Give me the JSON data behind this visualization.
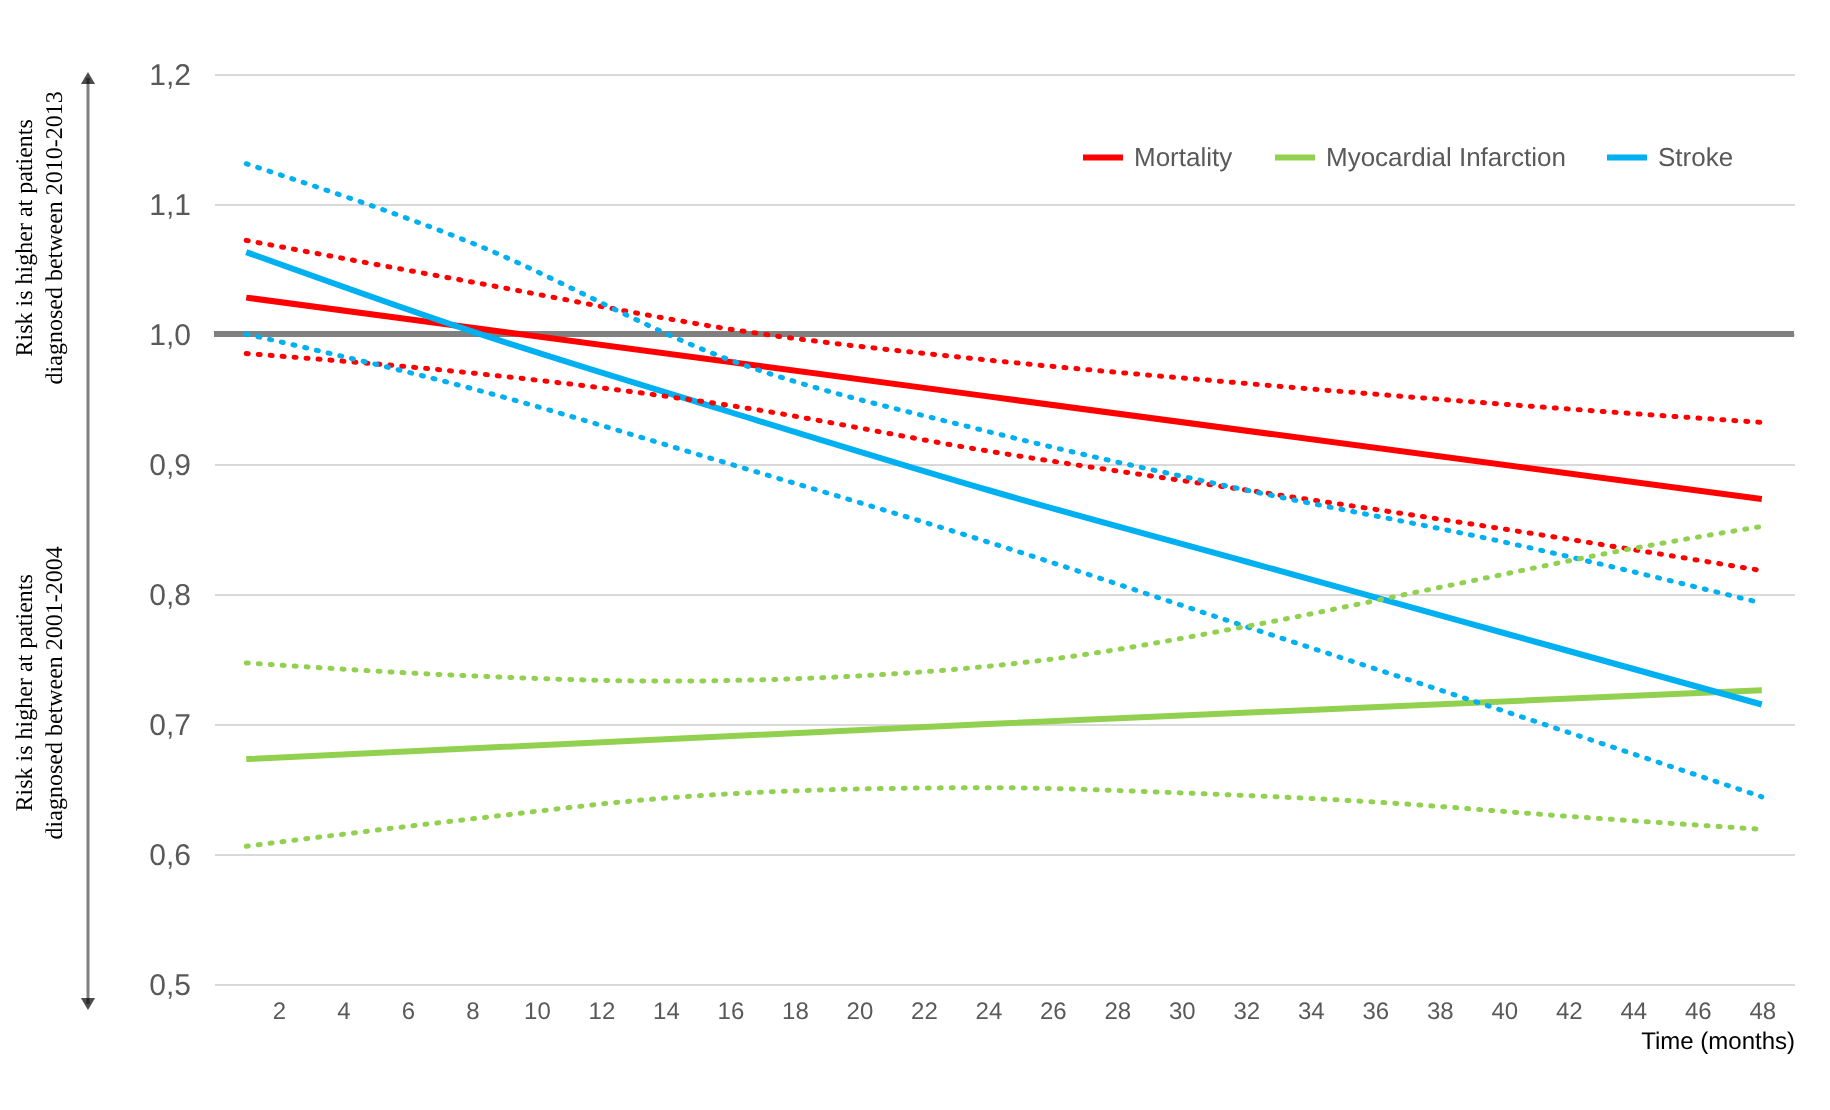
{
  "chart_data": {
    "type": "line",
    "xlabel": "Time (months)",
    "xlim": [
      0,
      49
    ],
    "xticks": [
      2,
      4,
      6,
      8,
      10,
      12,
      14,
      16,
      18,
      20,
      22,
      24,
      26,
      28,
      30,
      32,
      34,
      36,
      38,
      40,
      42,
      44,
      46,
      48
    ],
    "ylim": [
      0.5,
      1.2
    ],
    "yticks": [
      {
        "value": 0.5,
        "label": "0,5"
      },
      {
        "value": 0.6,
        "label": "0,6"
      },
      {
        "value": 0.7,
        "label": "0,7"
      },
      {
        "value": 0.8,
        "label": "0,8"
      },
      {
        "value": 0.9,
        "label": "0,9"
      },
      {
        "value": 1.0,
        "label": "1,0"
      },
      {
        "value": 1.1,
        "label": "1,1"
      },
      {
        "value": 1.2,
        "label": "1,2"
      }
    ],
    "grid": "y",
    "legend": "top right",
    "marker": "none",
    "ref_lines": [
      {
        "axis": "y",
        "value": 1.0,
        "color": "#808080"
      }
    ],
    "annotations": [
      "Risk is higher at patients\ndiagnosed between 2010-2013",
      "Risk is higher at patients\ndiagnosed between 2001-2004"
    ],
    "series": [
      {
        "name": "Mortality",
        "color": "#ff0000",
        "line_style": "solid",
        "x": [
          1,
          24,
          48
        ],
        "values": [
          1.028,
          0.952,
          0.873
        ]
      },
      {
        "name": "Myocardial Infarction",
        "color": "#92d050",
        "line_style": "solid",
        "x": [
          1,
          24,
          48
        ],
        "values": [
          0.673,
          0.7,
          0.726
        ]
      },
      {
        "name": "Stroke",
        "color": "#00b0f0",
        "line_style": "solid",
        "x": [
          1,
          8,
          16,
          24,
          32,
          40,
          48
        ],
        "values": [
          1.063,
          1.002,
          0.94,
          0.88,
          0.825,
          0.77,
          0.715
        ]
      },
      {
        "color": "#ff0000",
        "line_style": "dotted",
        "x": [
          1,
          8,
          17,
          24,
          32,
          40,
          48
        ],
        "values": [
          1.072,
          1.04,
          1.0,
          0.98,
          0.962,
          0.946,
          0.932
        ]
      },
      {
        "color": "#ff0000",
        "line_style": "dotted",
        "x": [
          1,
          8,
          16,
          24,
          32,
          40,
          48
        ],
        "values": [
          0.985,
          0.97,
          0.945,
          0.91,
          0.88,
          0.85,
          0.818
        ]
      },
      {
        "color": "#00b0f0",
        "line_style": "dotted",
        "x": [
          1,
          8,
          16,
          24,
          32,
          40,
          48
        ],
        "values": [
          1.131,
          1.07,
          0.98,
          0.925,
          0.88,
          0.84,
          0.793
        ]
      },
      {
        "color": "#00b0f0",
        "line_style": "dotted",
        "x": [
          1,
          8,
          16,
          24,
          32,
          40,
          48
        ],
        "values": [
          1.0,
          0.958,
          0.9,
          0.84,
          0.775,
          0.71,
          0.644
        ]
      },
      {
        "color": "#92d050",
        "line_style": "dotted",
        "x": [
          1,
          8,
          14,
          20,
          26,
          32,
          38,
          44,
          48
        ],
        "values": [
          0.747,
          0.737,
          0.733,
          0.737,
          0.75,
          0.775,
          0.805,
          0.835,
          0.852
        ]
      },
      {
        "color": "#92d050",
        "line_style": "dotted",
        "x": [
          1,
          8,
          14,
          20,
          24,
          30,
          36,
          42,
          48
        ],
        "values": [
          0.606,
          0.627,
          0.643,
          0.65,
          0.651,
          0.647,
          0.64,
          0.629,
          0.619
        ]
      }
    ]
  }
}
